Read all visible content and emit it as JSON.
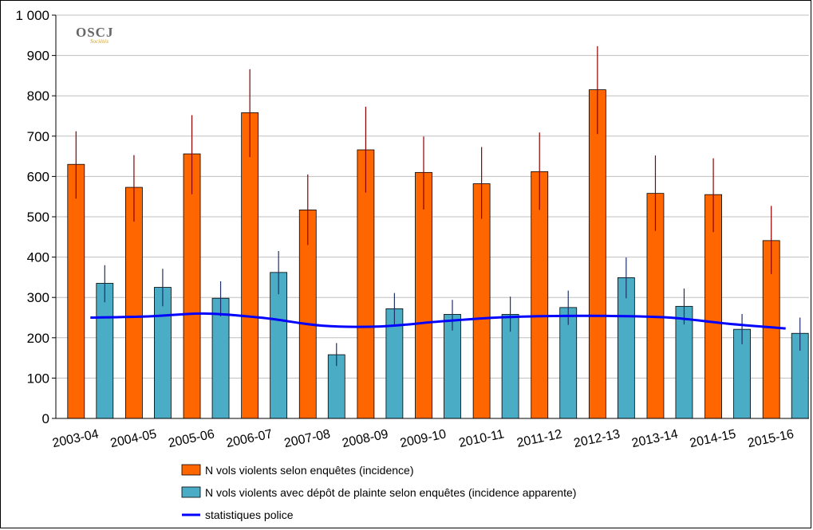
{
  "logo": {
    "name": "OSCJ",
    "sub": "Sociétés"
  },
  "chart_data": {
    "type": "bar",
    "title": "",
    "xlabel": "",
    "ylabel": "",
    "ylim": [
      0,
      1000
    ],
    "yticks": [
      0,
      100,
      200,
      300,
      400,
      500,
      600,
      700,
      800,
      900,
      1000
    ],
    "ytick_labels": [
      "0",
      "100",
      "200",
      "300",
      "400",
      "500",
      "600",
      "700",
      "800",
      "900",
      "1 000"
    ],
    "grid": true,
    "legend_position": "bottom",
    "categories": [
      "2003-04",
      "2004-05",
      "2005-06",
      "2006-07",
      "2007-08",
      "2008-09",
      "2009-10",
      "2010-11",
      "2011-12",
      "2012-13",
      "2013-14",
      "2014-15",
      "2015-16"
    ],
    "series": [
      {
        "name": "N vols violents selon enquêtes (incidence)",
        "kind": "bar",
        "color": "#ff6600",
        "values": [
          630,
          573,
          656,
          758,
          517,
          666,
          610,
          582,
          612,
          815,
          558,
          555,
          441
        ],
        "error_low": [
          545,
          488,
          556,
          648,
          430,
          560,
          518,
          495,
          517,
          705,
          465,
          462,
          358
        ],
        "error_high": [
          712,
          653,
          752,
          866,
          605,
          773,
          699,
          673,
          709,
          923,
          652,
          645,
          527
        ]
      },
      {
        "name": "N vols violents avec dépôt de plainte selon enquêtes (incidence apparente)",
        "kind": "bar",
        "color": "#4bacc6",
        "values": [
          335,
          325,
          298,
          362,
          158,
          272,
          258,
          258,
          275,
          349,
          278,
          221,
          211
        ],
        "error_low": [
          288,
          278,
          253,
          308,
          130,
          232,
          218,
          215,
          232,
          298,
          233,
          184,
          168
        ],
        "error_high": [
          380,
          371,
          340,
          415,
          187,
          311,
          294,
          302,
          317,
          399,
          322,
          259,
          250
        ]
      },
      {
        "name": "statistiques police",
        "kind": "line",
        "color": "#0000ff",
        "values": [
          250,
          253,
          260,
          249,
          230,
          228,
          240,
          250,
          254,
          254,
          250,
          235,
          223
        ]
      }
    ]
  }
}
